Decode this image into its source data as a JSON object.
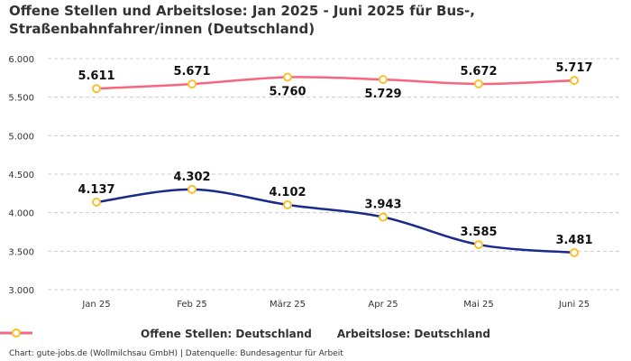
{
  "chart_data": {
    "type": "line",
    "title": "Offene Stellen und Arbeitslose: Jan 2025 - Juni 2025 für Bus-, Straßenbahnfahrer/innen (Deutschland)",
    "categories": [
      "Jan 25",
      "Feb 25",
      "März 25",
      "Apr 25",
      "Mai 25",
      "Juni 25"
    ],
    "series": [
      {
        "name": "Offene Stellen: Deutschland",
        "values": [
          4137,
          4302,
          4102,
          3943,
          3585,
          3481
        ],
        "labels": [
          "4.137",
          "4.302",
          "4.102",
          "3.943",
          "3.585",
          "3.481"
        ],
        "color": "#1a2a8c"
      },
      {
        "name": "Arbeitslose: Deutschland",
        "values": [
          5611,
          5671,
          5760,
          5729,
          5672,
          5717
        ],
        "labels": [
          "5.611",
          "5.671",
          "5.760",
          "5.729",
          "5.672",
          "5.717"
        ],
        "color": "#f7657e"
      }
    ],
    "marker_color": "#fbc02d",
    "yticks": [
      3000,
      3500,
      4000,
      4500,
      5000,
      5500,
      6000
    ],
    "ytick_labels": [
      "3.000",
      "3.500",
      "4.000",
      "4.500",
      "5.000",
      "5.500",
      "6.000"
    ],
    "ylim": [
      3000,
      6000
    ],
    "grid": true,
    "legend": "bottom",
    "xlabel": "",
    "ylabel": ""
  },
  "footer": "Chart: gute-jobs.de (Wollmilchsau GmbH) | Datenquelle: Bundesagentur für Arbeit"
}
